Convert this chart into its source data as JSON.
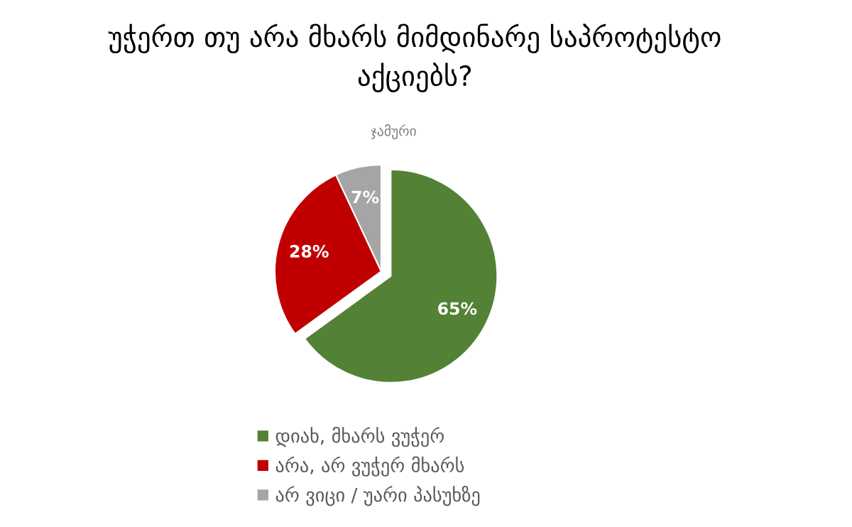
{
  "chart_data": {
    "type": "pie",
    "title": "უჭერთ თუ არა მხარს მიმდინარე საპროტესტო\nაქციებს?",
    "subtitle": "ჯამური",
    "categories": [
      "დიახ, მხარს ვუჭერ",
      "არა, არ ვუჭერ მხარს",
      "არ ვიცი / უარი პასუხზე"
    ],
    "values": [
      65,
      28,
      7
    ],
    "colors": [
      "#538135",
      "#c00000",
      "#a5a5a5"
    ],
    "value_labels": [
      "65%",
      "28%",
      "7%"
    ],
    "legend": "bottom"
  }
}
